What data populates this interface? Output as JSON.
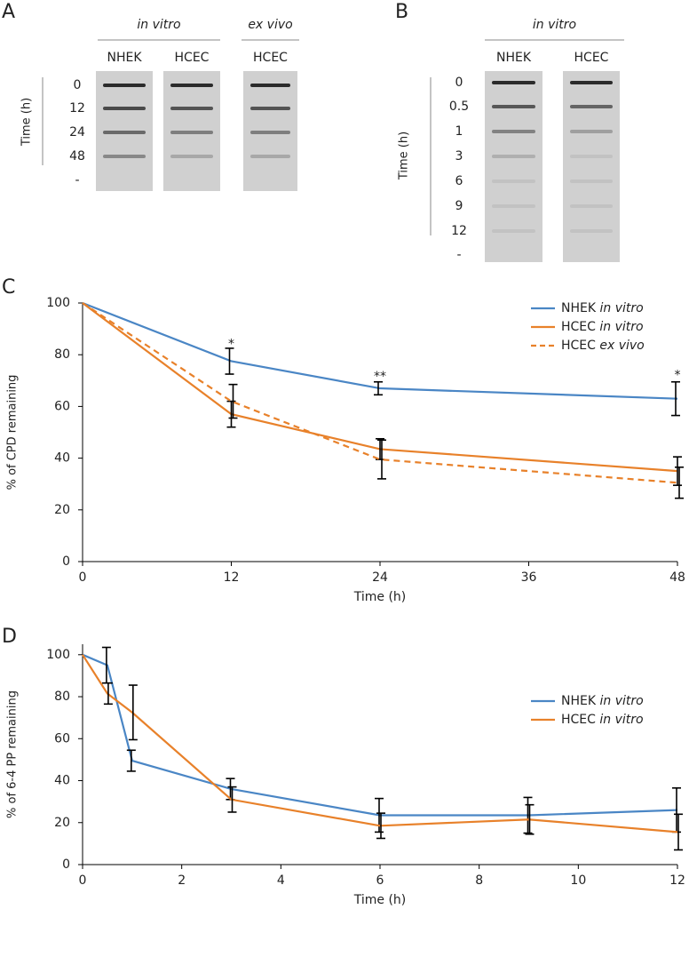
{
  "gels": [
    {
      "letter": "A",
      "groups": [
        {
          "label": "in vitro",
          "lanes": [
            "NHEK",
            "HCEC"
          ]
        },
        {
          "label": "ex vivo",
          "lanes": [
            "HCEC"
          ]
        }
      ],
      "axis_label": "Time (h)",
      "rows": [
        "0",
        "12",
        "24",
        "48",
        "-"
      ]
    },
    {
      "letter": "B",
      "groups": [
        {
          "label": "in vitro",
          "lanes": [
            "NHEK",
            "HCEC"
          ]
        }
      ],
      "axis_label": "Time (h)",
      "rows": [
        "0",
        "0.5",
        "1",
        "3",
        "6",
        "9",
        "12",
        "-"
      ]
    }
  ],
  "chart_data": [
    {
      "type": "line",
      "letter": "C",
      "xlabel": "Time (h)",
      "ylabel": "% of CPD remaining",
      "x": [
        0,
        12,
        24,
        48
      ],
      "xlim": [
        0,
        48
      ],
      "xticks": [
        0,
        12,
        24,
        36,
        48
      ],
      "ylim": [
        0,
        100
      ],
      "yticks": [
        0,
        20,
        40,
        60,
        80,
        100
      ],
      "series": [
        {
          "name": "NHEK in vitro",
          "color": "#4a86c5",
          "dash": false,
          "values": [
            100,
            77.5,
            67,
            63
          ],
          "errors": [
            0,
            5,
            2.5,
            6.5
          ]
        },
        {
          "name": "HCEC in vitro",
          "color": "#e8812a",
          "dash": false,
          "values": [
            100,
            57,
            43.5,
            35
          ],
          "errors": [
            0,
            5,
            4,
            5.5
          ]
        },
        {
          "name": "HCEC ex vivo",
          "color": "#e8812a",
          "dash": true,
          "values": [
            100,
            62,
            39.5,
            30.5
          ],
          "errors": [
            0,
            6.5,
            7.5,
            6
          ]
        }
      ],
      "annotations": [
        {
          "x": 12,
          "y": 84,
          "text": "*"
        },
        {
          "x": 24,
          "y": 71.5,
          "text": "**"
        },
        {
          "x": 48,
          "y": 72,
          "text": "*"
        }
      ]
    },
    {
      "type": "line",
      "letter": "D",
      "xlabel": "Time (h)",
      "ylabel": "% of 6-4 PP remaining",
      "x": [
        0,
        0.5,
        1,
        3,
        6,
        9,
        12
      ],
      "xlim": [
        0,
        12
      ],
      "xticks": [
        0,
        2,
        4,
        6,
        8,
        10,
        12
      ],
      "ylim": [
        0,
        105
      ],
      "yticks": [
        0,
        20,
        40,
        60,
        80,
        100
      ],
      "series": [
        {
          "name": "NHEK in vitro",
          "color": "#4a86c5",
          "dash": false,
          "values": [
            100,
            95,
            49.5,
            36,
            23.5,
            23.5,
            26
          ],
          "errors": [
            0,
            8.5,
            5,
            5,
            8,
            8.5,
            10.5
          ]
        },
        {
          "name": "HCEC in vitro",
          "color": "#e8812a",
          "dash": false,
          "values": [
            100,
            81.5,
            72.5,
            31,
            18.5,
            21.5,
            15.5
          ],
          "errors": [
            0,
            5,
            13,
            6,
            6,
            7,
            8.5
          ]
        }
      ],
      "annotations": []
    }
  ]
}
